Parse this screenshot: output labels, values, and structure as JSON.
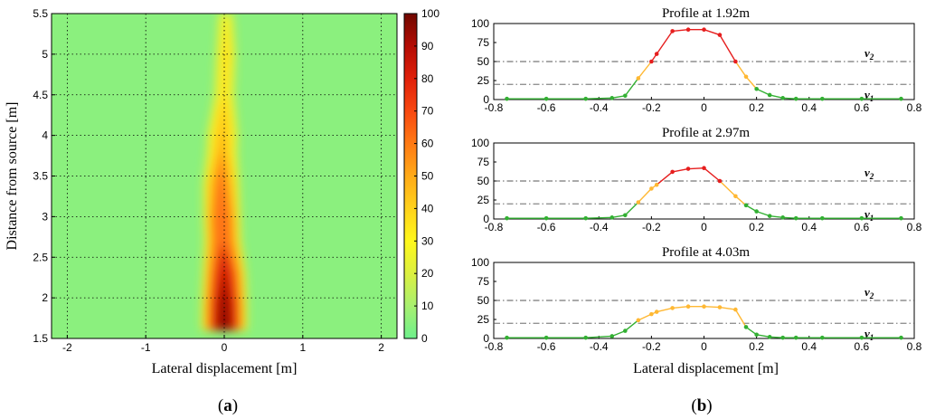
{
  "chart_data": [
    {
      "type": "heatmap",
      "panel_label": "a",
      "xlabel": "Lateral displacement [m]",
      "ylabel": "Distance from source [m]",
      "xlim": [
        -2.2,
        2.2
      ],
      "ylim": [
        1.5,
        5.5
      ],
      "xticks": [
        -2,
        -1,
        0,
        1,
        2
      ],
      "yticks": [
        1.5,
        2,
        2.5,
        3,
        3.5,
        4,
        4.5,
        5,
        5.5
      ],
      "grid": true,
      "colorbar": {
        "min": 0,
        "max": 100,
        "ticks": [
          0,
          10,
          20,
          30,
          40,
          50,
          60,
          70,
          80,
          90,
          100
        ]
      },
      "plume_profile": [
        {
          "distance": 1.6,
          "center": 0.0,
          "width": 0.26,
          "peak": 95
        },
        {
          "distance": 1.92,
          "center": 0.0,
          "width": 0.26,
          "peak": 92
        },
        {
          "distance": 2.3,
          "center": 0.0,
          "width": 0.25,
          "peak": 82
        },
        {
          "distance": 2.7,
          "center": -0.02,
          "width": 0.22,
          "peak": 68
        },
        {
          "distance": 2.97,
          "center": -0.03,
          "width": 0.22,
          "peak": 68
        },
        {
          "distance": 3.4,
          "center": -0.04,
          "width": 0.22,
          "peak": 58
        },
        {
          "distance": 3.8,
          "center": -0.03,
          "width": 0.2,
          "peak": 45
        },
        {
          "distance": 4.03,
          "center": -0.02,
          "width": 0.2,
          "peak": 43
        },
        {
          "distance": 4.5,
          "center": 0.0,
          "width": 0.15,
          "peak": 32
        },
        {
          "distance": 5.0,
          "center": 0.02,
          "width": 0.14,
          "peak": 34
        },
        {
          "distance": 5.5,
          "center": 0.02,
          "width": 0.12,
          "peak": 28
        }
      ]
    },
    {
      "type": "line",
      "panel_label": "b",
      "xlabel": "Lateral displacement [m]",
      "xlim": [
        -0.8,
        0.8
      ],
      "ylim": [
        0,
        100
      ],
      "xticks": [
        -0.8,
        -0.6,
        -0.4,
        -0.2,
        0,
        0.2,
        0.4,
        0.6,
        0.8
      ],
      "yticks": [
        0,
        25,
        50,
        75,
        100
      ],
      "thresholds": [
        {
          "label": "v",
          "sub": "2",
          "value": 50
        },
        {
          "label": "v",
          "sub": "1",
          "value": 20
        }
      ],
      "colors": {
        "low": "#33b033",
        "mid": "#ffb833",
        "high": "#e61e1e"
      },
      "profiles": [
        {
          "title": "Profile at 1.92m",
          "x": [
            -0.75,
            -0.6,
            -0.45,
            -0.35,
            -0.3,
            -0.25,
            -0.2,
            -0.18,
            -0.12,
            -0.06,
            0.0,
            0.06,
            0.12,
            0.16,
            0.2,
            0.25,
            0.3,
            0.35,
            0.45,
            0.6,
            0.75
          ],
          "y": [
            1,
            1,
            1,
            2,
            5,
            28,
            50,
            60,
            90,
            92,
            92,
            85,
            50,
            30,
            14,
            6,
            2,
            1,
            1,
            1,
            1
          ]
        },
        {
          "title": "Profile at 2.97m",
          "x": [
            -0.75,
            -0.6,
            -0.45,
            -0.35,
            -0.3,
            -0.25,
            -0.2,
            -0.18,
            -0.12,
            -0.06,
            0.0,
            0.06,
            0.12,
            0.16,
            0.2,
            0.25,
            0.3,
            0.35,
            0.45,
            0.6,
            0.75
          ],
          "y": [
            1,
            1,
            1,
            2,
            5,
            22,
            40,
            45,
            62,
            66,
            67,
            50,
            30,
            18,
            10,
            4,
            2,
            1,
            1,
            1,
            1
          ]
        },
        {
          "title": "Profile at 4.03m",
          "x": [
            -0.75,
            -0.6,
            -0.45,
            -0.35,
            -0.3,
            -0.25,
            -0.2,
            -0.18,
            -0.12,
            -0.06,
            0.0,
            0.06,
            0.12,
            0.16,
            0.2,
            0.25,
            0.3,
            0.35,
            0.45,
            0.6,
            0.75
          ],
          "y": [
            1,
            1,
            1,
            3,
            10,
            24,
            32,
            35,
            40,
            42,
            42,
            41,
            38,
            15,
            5,
            2,
            1,
            1,
            1,
            1,
            1
          ]
        }
      ]
    }
  ]
}
